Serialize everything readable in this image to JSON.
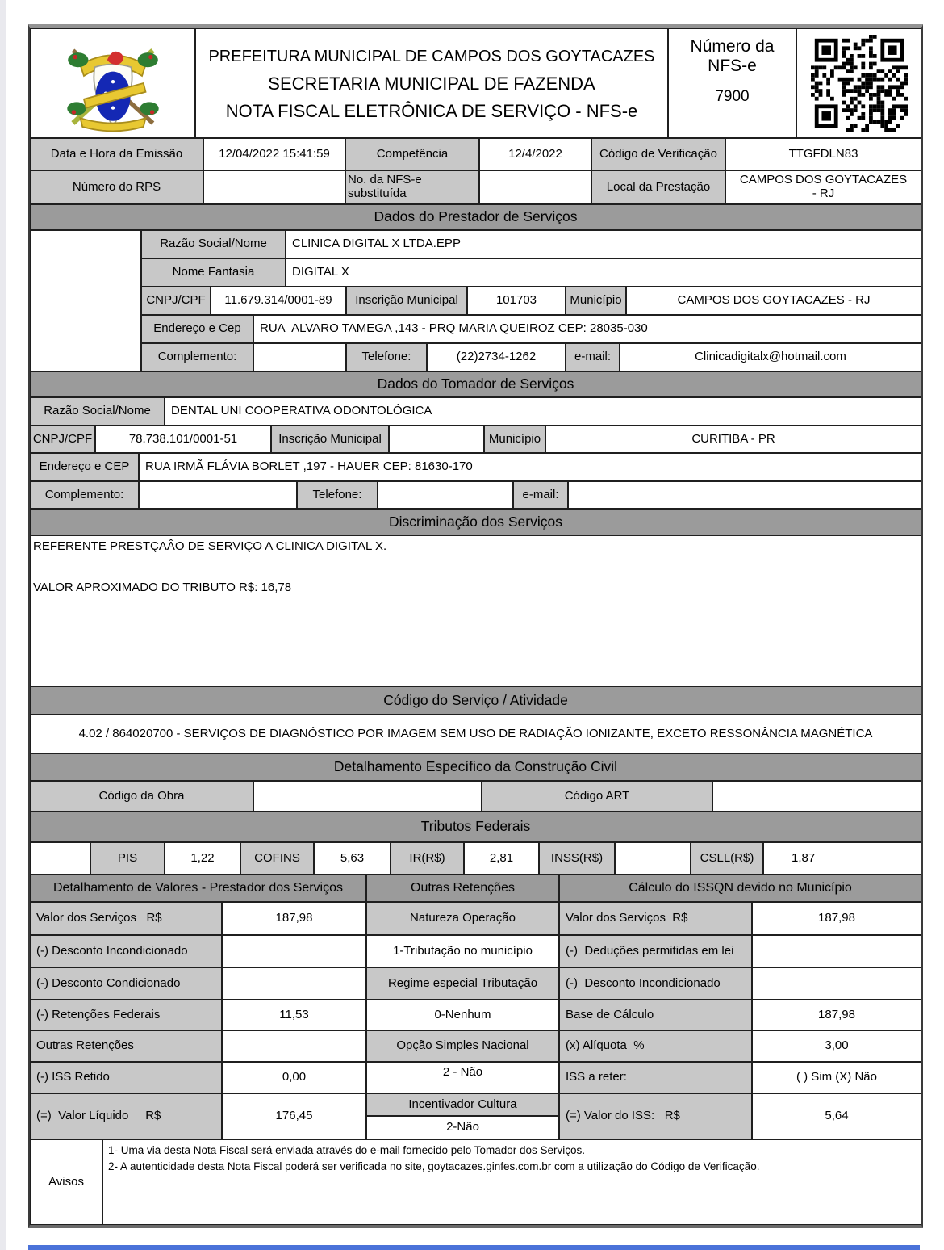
{
  "colors": {
    "label_bg": "#c8c8c8",
    "section_bg": "#9b9b9b",
    "accent_bar": "#4a72d9"
  },
  "header": {
    "logo_icon": "municipal-coat-of-arms",
    "qr_icon": "qr-code",
    "title_line1": "PREFEITURA MUNICIPAL DE CAMPOS DOS GOYTACAZES",
    "title_line2": "SECRETARIA MUNICIPAL DE FAZENDA",
    "title_line3": "NOTA FISCAL ELETRÔNICA DE SERVIÇO - NFS-e",
    "nfse_number_label": "Número da NFS-e",
    "nfse_number": "7900"
  },
  "emissao": {
    "data_label": "Data e Hora da Emissão",
    "data_value": "12/04/2022 15:41:59",
    "competencia_label": "Competência",
    "competencia_value": "12/4/2022",
    "verificacao_label": "Código de Verificação",
    "verificacao_value": "TTGFDLN83",
    "rps_label": "Número do RPS",
    "rps_value": "",
    "substituida_label": "No. da NFS-e substituída",
    "substituida_value": "",
    "local_label": "Local da Prestação",
    "local_value": "CAMPOS DOS GOYTACAZES - RJ"
  },
  "prestador": {
    "section_title": "Dados do Prestador de Serviços",
    "razao_label": "Razão Social/Nome",
    "razao": "CLINICA DIGITAL X LTDA.EPP",
    "fantasia_label": "Nome Fantasia",
    "fantasia": "DIGITAL X",
    "cnpj_label": "CNPJ/CPF",
    "cnpj": "11.679.314/0001-89",
    "im_label": "Inscrição Municipal",
    "im": "101703",
    "municipio_label": "Município",
    "municipio": "CAMPOS DOS GOYTACAZES - RJ",
    "endereco_label": "Endereço e Cep",
    "endereco": "RUA  ALVARO TAMEGA ,143 - PRQ MARIA QUEIROZ CEP: 28035-030",
    "complemento_label": "Complemento:",
    "complemento": "",
    "telefone_label": "Telefone:",
    "telefone": "(22)2734-1262",
    "email_label": "e-mail:",
    "email": "Clinicadigitalx@hotmail.com"
  },
  "tomador": {
    "section_title": "Dados do Tomador de Serviços",
    "razao_label": "Razão Social/Nome",
    "razao": "DENTAL UNI COOPERATIVA ODONTOLÓGICA",
    "cnpj_label": "CNPJ/CPF",
    "cnpj": "78.738.101/0001-51",
    "im_label": "Inscrição Municipal",
    "im": "",
    "municipio_label": "Município",
    "municipio": "CURITIBA - PR",
    "endereco_label": "Endereço e CEP",
    "endereco": "RUA IRMÃ FLÁVIA BORLET ,197 - HAUER CEP: 81630-170",
    "complemento_label": "Complemento:",
    "complemento": "",
    "telefone_label": "Telefone:",
    "telefone": "",
    "email_label": "e-mail:",
    "email": ""
  },
  "discriminacao": {
    "section_title": "Discriminação dos Serviços",
    "line1": "REFERENTE PRESTÇAÂO DE SERVIÇO A CLINICA DIGITAL X.",
    "line2": "VALOR APROXIMADO DO TRIBUTO R$: 16,78"
  },
  "codigo_servico": {
    "section_title": "Código do Serviço / Atividade",
    "value": "4.02 / 864020700 - SERVIÇOS DE DIAGNÓSTICO POR IMAGEM SEM USO DE RADIAÇÃO IONIZANTE, EXCETO RESSONÂNCIA MAGNÉTICA"
  },
  "construcao": {
    "section_title": "Detalhamento Específico da Construção Civil",
    "obra_label": "Código da Obra",
    "obra": "",
    "art_label": "Código ART",
    "art": ""
  },
  "tributos": {
    "section_title": "Tributos Federais",
    "pis_label": "PIS",
    "pis": "1,22",
    "cofins_label": "COFINS",
    "cofins": "5,63",
    "ir_label": "IR(R$)",
    "ir": "2,81",
    "inss_label": "INSS(R$)",
    "inss": "",
    "csll_label": "CSLL(R$)",
    "csll": "1,87"
  },
  "valores": {
    "left_header": "Detalhamento de Valores - Prestador dos Serviços",
    "middle_header": "Outras Retenções",
    "right_header": "Cálculo do ISSQN devido no Município",
    "left_rows": [
      {
        "label": "Valor dos Serviços   R$",
        "value": "187,98"
      },
      {
        "label": "(-) Desconto Incondicionado",
        "value": ""
      },
      {
        "label": "(-) Desconto Condicionado",
        "value": ""
      },
      {
        "label": "(-) Retenções Federais",
        "value": "11,53"
      },
      {
        "label": "Outras Retenções",
        "value": ""
      },
      {
        "label": "(-) ISS Retido",
        "value": "0,00"
      },
      {
        "label": "(=)  Valor Líquido     R$",
        "value": "176,45"
      }
    ],
    "middle_cells": [
      "Natureza Operação",
      "1-Tributação no município",
      "Regime especial Tributação",
      "0-Nenhum",
      "Opção Simples Nacional",
      "2 - Não",
      "Incentivador Cultura",
      "2-Não"
    ],
    "right_rows": [
      {
        "label": "Valor dos Serviços  R$",
        "value": "187,98"
      },
      {
        "label": "(-)  Deduções permitidas em lei",
        "value": ""
      },
      {
        "label": "(-)  Desconto Incondicionado",
        "value": ""
      },
      {
        "label": "Base de Cálculo",
        "value": "187,98"
      },
      {
        "label": "(x) Alíquota  %",
        "value": "3,00"
      },
      {
        "label": "ISS a reter:",
        "value": "( ) Sim (X) Não"
      },
      {
        "label": "(=) Valor do ISS:   R$",
        "value": "5,64"
      }
    ]
  },
  "avisos": {
    "label": "Avisos",
    "line1": "1- Uma via desta Nota Fiscal será enviada através do e-mail fornecido pelo Tomador dos Serviços.",
    "line2": "2- A autenticidade desta Nota Fiscal poderá ser verificada no site, goytacazes.ginfes.com.br com a utilização do Código de Verificação."
  }
}
